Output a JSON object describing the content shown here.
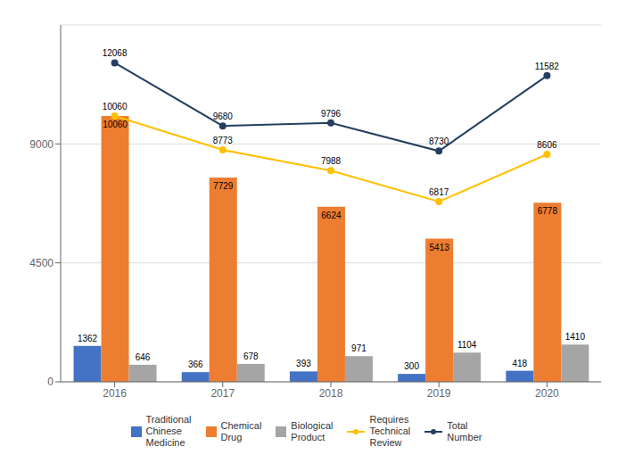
{
  "chart_data": {
    "type": "bar",
    "categories": [
      "2016",
      "2017",
      "2018",
      "2019",
      "2020"
    ],
    "series": [
      {
        "name": "Traditional\nChinese\nMedicine",
        "type": "bar",
        "color": "#4472C4",
        "values": [
          1362,
          366,
          393,
          300,
          418
        ]
      },
      {
        "name": "Chemical\nDrug",
        "type": "bar",
        "color": "#ED7D31",
        "values": [
          10060,
          7729,
          6624,
          5413,
          6778
        ]
      },
      {
        "name": "Biological\nProduct",
        "type": "bar",
        "color": "#A5A5A5",
        "values": [
          646,
          678,
          971,
          1104,
          1410
        ]
      },
      {
        "name": "Requires\nTechnical\nReview",
        "type": "line",
        "color": "#FFC000",
        "marker": "circle",
        "values": [
          10060,
          8773,
          7988,
          6817,
          8606
        ]
      },
      {
        "name": "Total\nNumber",
        "type": "line",
        "color": "#243F60",
        "marker": "circle",
        "values": [
          12068,
          9680,
          9796,
          8730,
          11582
        ]
      }
    ],
    "ylim": [
      0,
      13500
    ],
    "yticks": [
      0,
      4500,
      9000
    ],
    "grid": true,
    "legend": "bottom",
    "data_labels": true
  }
}
